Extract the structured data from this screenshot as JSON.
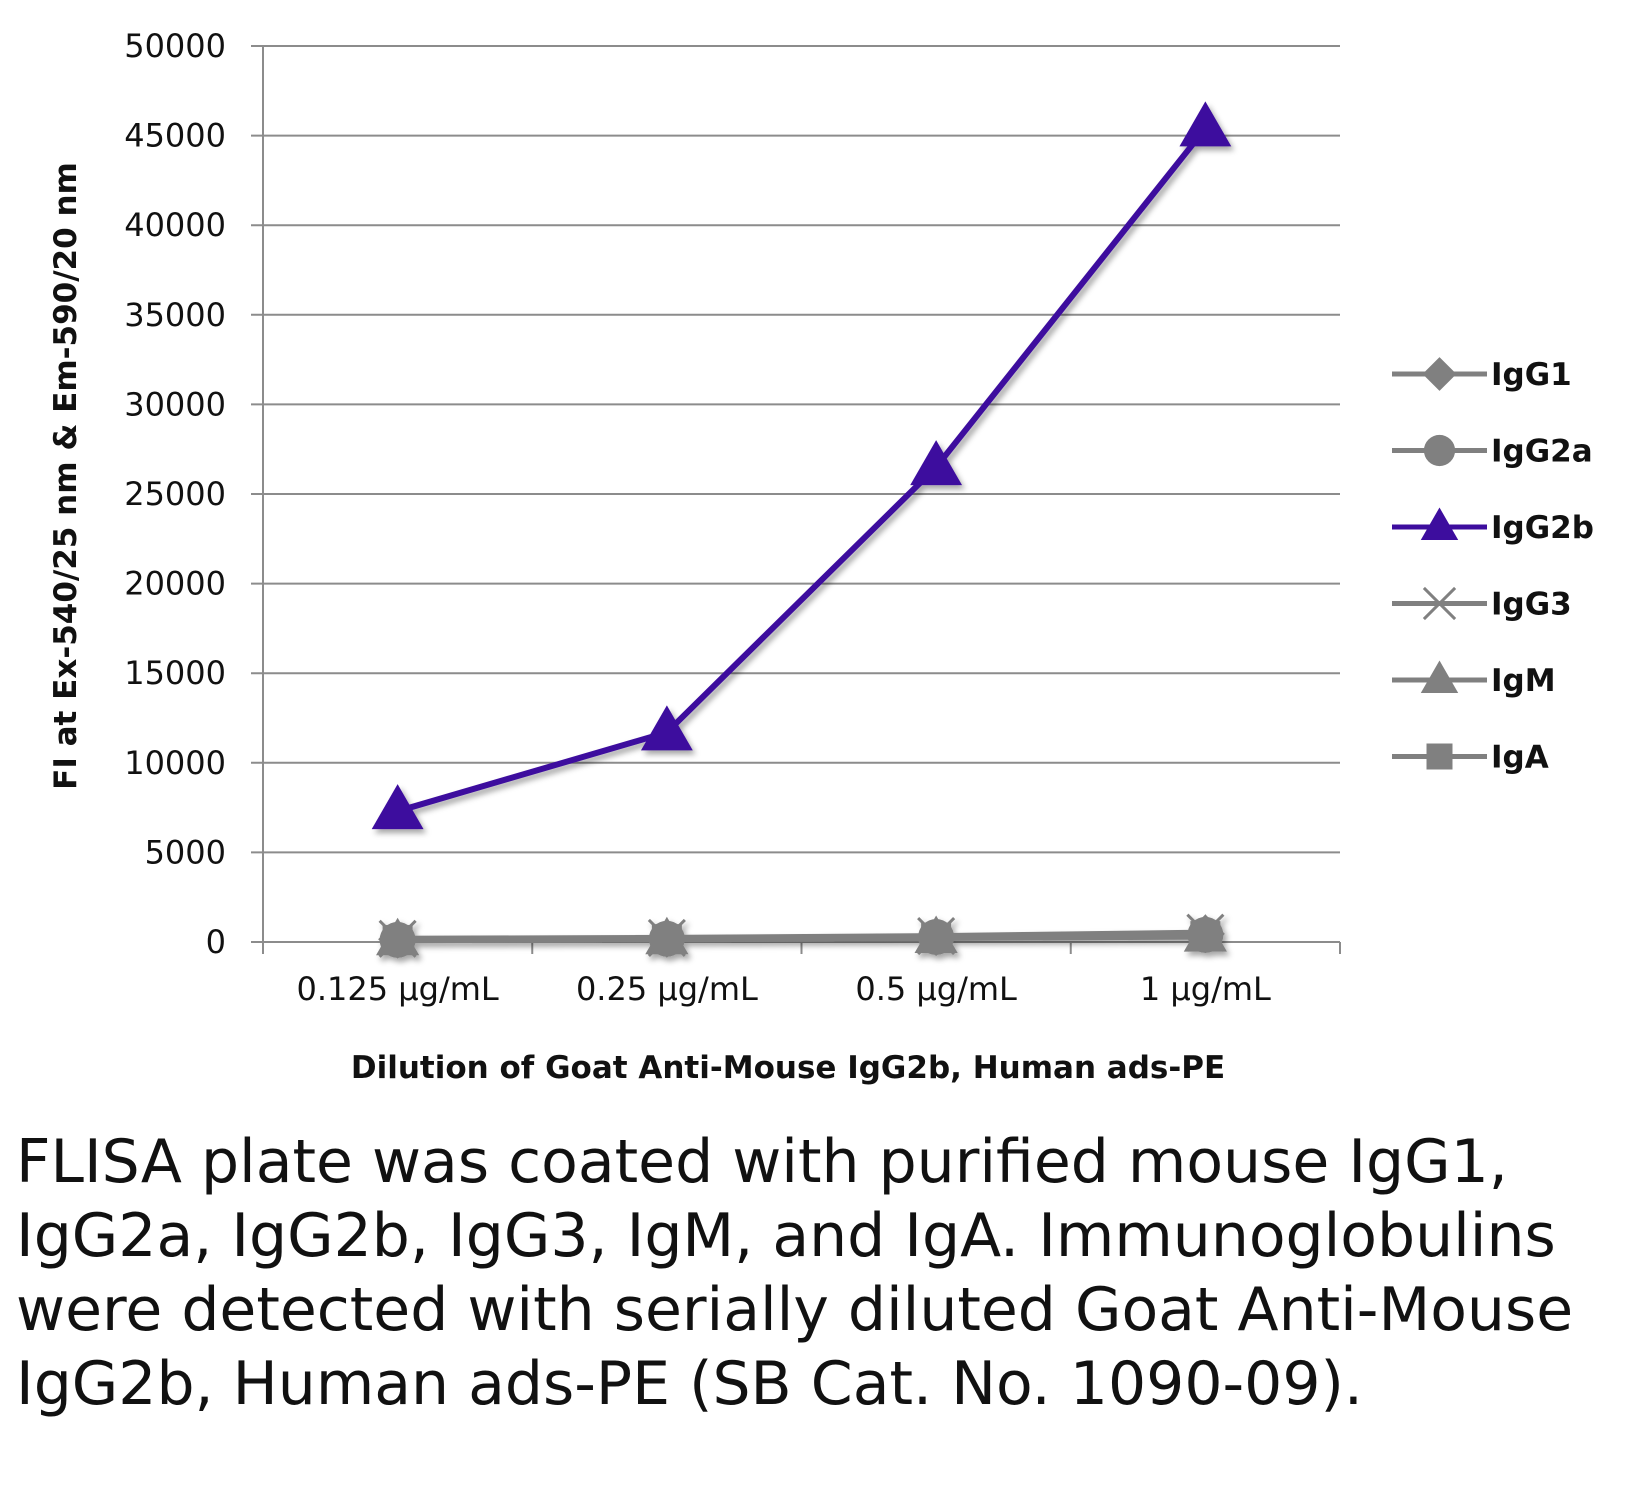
{
  "chart_data": {
    "type": "line",
    "categories": [
      "0.125 µg/mL",
      "0.25 µg/mL",
      "0.5 µg/mL",
      "1 µg/mL"
    ],
    "xlabel": "Dilution of Goat Anti-Mouse IgG2b, Human ads-PE",
    "ylabel": "FI at Ex-540/25 nm & Em-590/20 nm",
    "ylim": [
      0,
      50000
    ],
    "yticks": [
      0,
      5000,
      10000,
      15000,
      20000,
      25000,
      30000,
      35000,
      40000,
      45000,
      50000
    ],
    "grid": true,
    "legend_position": "right",
    "series": [
      {
        "name": "IgG1",
        "values": [
          150,
          200,
          300,
          450
        ],
        "color": "#808080",
        "marker": "diamond"
      },
      {
        "name": "IgG2a",
        "values": [
          120,
          180,
          280,
          400
        ],
        "color": "#808080",
        "marker": "circle"
      },
      {
        "name": "IgG2b",
        "values": [
          7300,
          11700,
          26500,
          45400
        ],
        "color": "#3d0d9e",
        "marker": "triangle"
      },
      {
        "name": "IgG3",
        "values": [
          180,
          230,
          330,
          520
        ],
        "color": "#808080",
        "marker": "x"
      },
      {
        "name": "IgM",
        "values": [
          100,
          150,
          220,
          300
        ],
        "color": "#808080",
        "marker": "triangle"
      },
      {
        "name": "IgA",
        "values": [
          110,
          160,
          240,
          330
        ],
        "color": "#808080",
        "marker": "square"
      }
    ]
  },
  "caption": "FLISA plate was coated with purified mouse IgG1, IgG2a, IgG2b, IgG3, IgM, and IgA. Immunoglobulins were detected with serially diluted Goat Anti-Mouse IgG2b, Human ads-PE (SB Cat. No. 1090-09)."
}
